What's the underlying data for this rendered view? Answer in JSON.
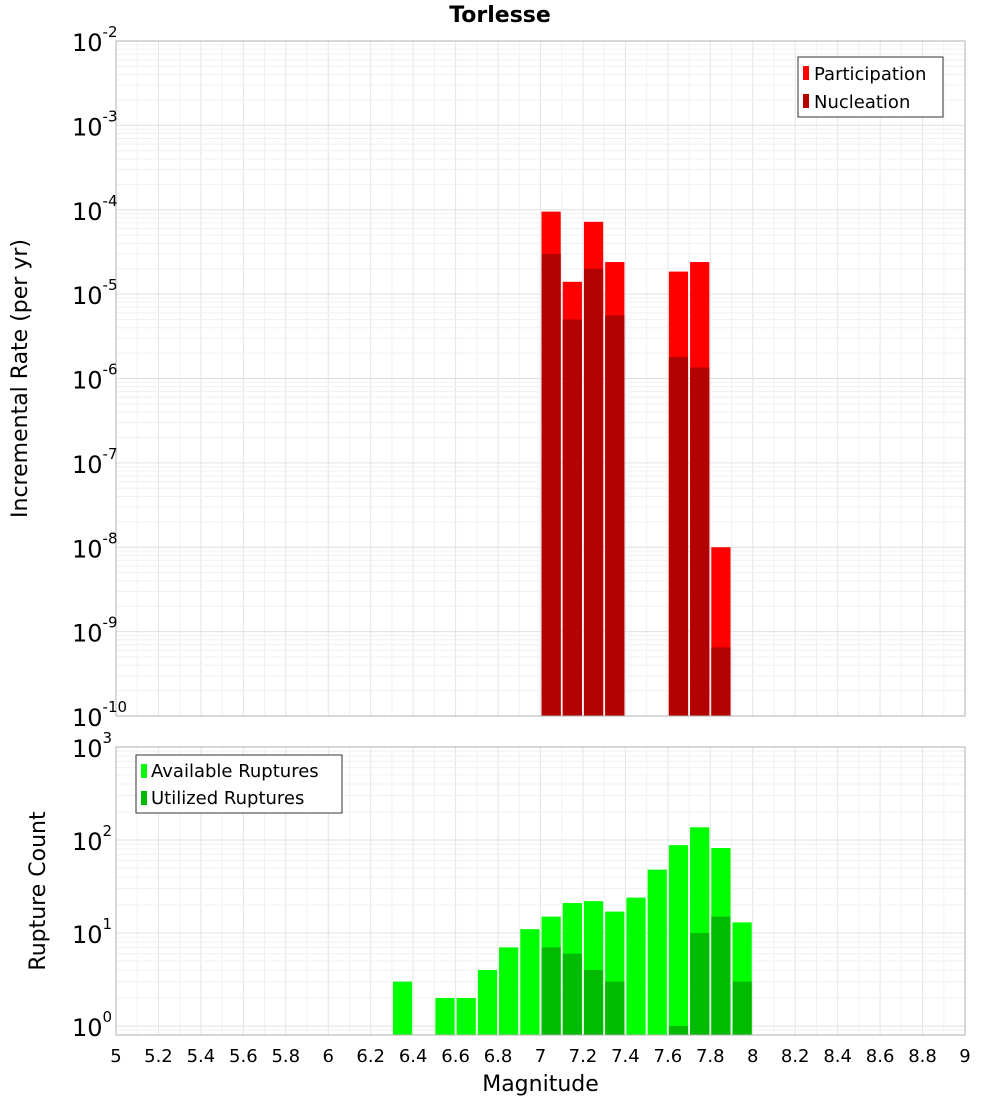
{
  "chart_data": [
    {
      "type": "bar",
      "title": "Torlesse",
      "ylabel": "Incremental Rate (per yr)",
      "y_scale": "log",
      "ylim": [
        1e-10,
        0.01
      ],
      "xlim": [
        5,
        9
      ],
      "bin_width": 0.1,
      "grid": true,
      "legend_position": "top-right",
      "x": [
        7.0,
        7.1,
        7.2,
        7.3,
        7.6,
        7.7,
        7.8
      ],
      "series": [
        {
          "name": "Participation",
          "color": "#ff0000",
          "values": [
            9.5e-05,
            1.4e-05,
            7.2e-05,
            2.4e-05,
            1.85e-05,
            2.4e-05,
            1e-08
          ]
        },
        {
          "name": "Nucleation",
          "color": "#b30000",
          "values": [
            3e-05,
            5e-06,
            2e-05,
            5.6e-06,
            1.8e-06,
            1.35e-06,
            6.5e-10
          ]
        }
      ]
    },
    {
      "type": "bar",
      "xlabel": "Magnitude",
      "ylabel": "Rupture Count",
      "y_scale": "log",
      "ylim": [
        0.8,
        1000
      ],
      "xlim": [
        5,
        9
      ],
      "bin_width": 0.1,
      "grid": true,
      "legend_position": "top-left",
      "x": [
        6.3,
        6.5,
        6.6,
        6.7,
        6.8,
        6.9,
        7.0,
        7.1,
        7.2,
        7.3,
        7.4,
        7.5,
        7.6,
        7.7,
        7.8,
        7.9
      ],
      "xticks": [
        "5",
        "5.2",
        "5.4",
        "5.6",
        "5.8",
        "6",
        "6.2",
        "6.4",
        "6.6",
        "6.8",
        "7",
        "7.2",
        "7.4",
        "7.6",
        "7.8",
        "8",
        "8.2",
        "8.4",
        "8.6",
        "8.8",
        "9"
      ],
      "series": [
        {
          "name": "Available Ruptures",
          "color": "#00ff00",
          "values": [
            3,
            2,
            2,
            4,
            7,
            11,
            15,
            21,
            22,
            17,
            24,
            48,
            88,
            137,
            82,
            13
          ]
        },
        {
          "name": "Utilized Ruptures",
          "color": "#00bb00",
          "values": [
            0,
            0,
            0,
            0,
            0,
            0,
            7,
            6,
            4,
            3,
            0,
            0,
            1,
            10,
            15,
            3
          ]
        }
      ]
    }
  ]
}
